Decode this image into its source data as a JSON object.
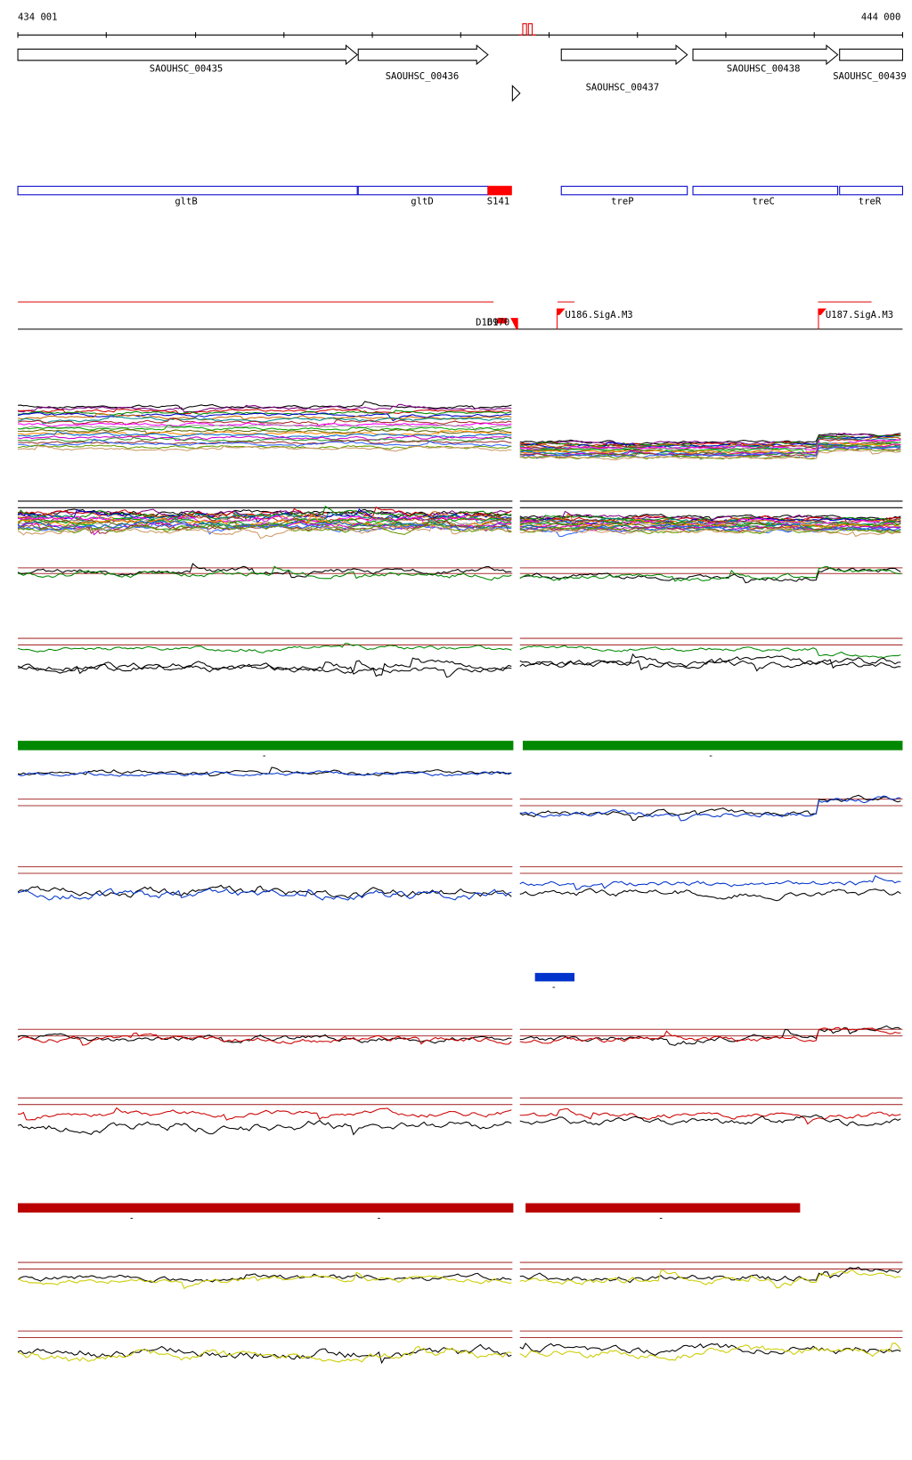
{
  "ruler": {
    "start": "434 001",
    "end": "444 000"
  },
  "genes": [
    "SAOUHSC_00435",
    "SAOUHSC_00436",
    "SAOUHSC_00437",
    "SAOUHSC_00438",
    "SAOUHSC_00439"
  ],
  "features": [
    "gltB",
    "gltD",
    "S141",
    "treP",
    "treC",
    "treR"
  ],
  "sites": [
    "D169",
    "D170",
    "U186.SigA.M3",
    "U187.SigA.M3"
  ],
  "strand_marks": [
    "-",
    "-",
    "-",
    "-",
    "-",
    "-"
  ]
}
